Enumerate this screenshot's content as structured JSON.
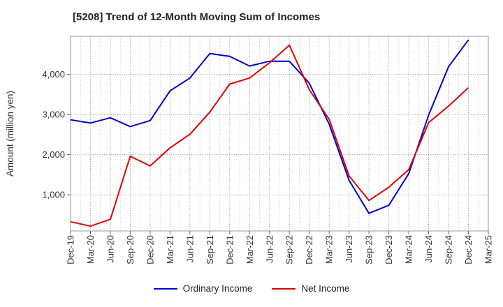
{
  "chart_data": {
    "type": "line",
    "title": "[5208]  Trend of 12-Month Moving Sum of Incomes",
    "xlabel": "",
    "ylabel": "Amount (million yen)",
    "categories": [
      "Dec-19",
      "Mar-20",
      "Jun-20",
      "Sep-20",
      "Dec-20",
      "Mar-21",
      "Jun-21",
      "Sep-21",
      "Dec-21",
      "Mar-22",
      "Jun-22",
      "Sep-22",
      "Dec-22",
      "Mar-23",
      "Jun-23",
      "Sep-23",
      "Dec-23",
      "Mar-24",
      "Jun-24",
      "Sep-24",
      "Dec-24",
      "Mar-25"
    ],
    "ylim": [
      100,
      4950
    ],
    "yticks": [
      1000,
      2000,
      3000,
      4000
    ],
    "ytick_labels": [
      "1,000",
      "2,000",
      "3,000",
      "4,000"
    ],
    "grid": true,
    "legend_position": "bottom",
    "series": [
      {
        "name": "Ordinary Income",
        "color": "#0000cc",
        "values": [
          2870,
          2790,
          2920,
          2700,
          2850,
          3590,
          3910,
          4520,
          4450,
          4210,
          4330,
          4330,
          3780,
          2760,
          1360,
          540,
          740,
          1530,
          2990,
          4190,
          4860,
          null
        ]
      },
      {
        "name": "Net Income",
        "color": "#dd0000",
        "values": [
          330,
          220,
          390,
          1960,
          1720,
          2170,
          2510,
          3060,
          3760,
          3910,
          4290,
          4730,
          3620,
          2880,
          1470,
          860,
          1190,
          1630,
          2800,
          3210,
          3670,
          null
        ]
      }
    ]
  }
}
